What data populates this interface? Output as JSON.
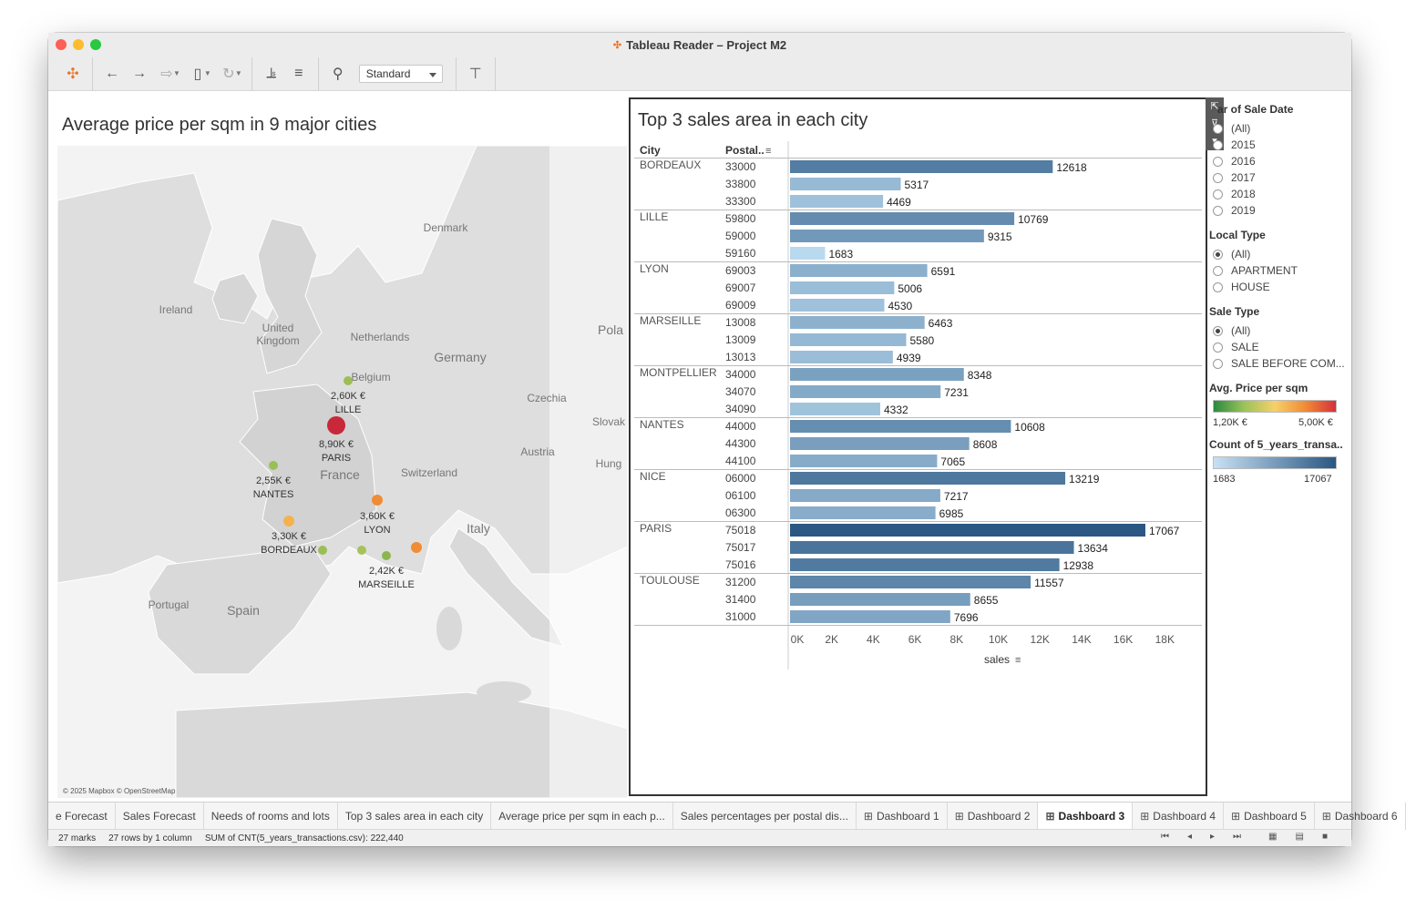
{
  "window": {
    "title": "Tableau Reader – Project M2"
  },
  "toolbar": {
    "view_select": "Standard"
  },
  "map_panel": {
    "title": "Average price per sqm in 9 major cities",
    "credit": "© 2025 Mapbox © OpenStreetMap",
    "geo_labels": [
      "Denmark",
      "Ireland",
      "United Kingdom",
      "Netherlands",
      "Germany",
      "Pola",
      "Belgium",
      "Czechia",
      "Slovak",
      "Austria",
      "Hung",
      "France",
      "Switzerland",
      "Italy",
      "Portugal",
      "Spain"
    ],
    "cities": [
      {
        "name": "LILLE",
        "price": "2,60K €"
      },
      {
        "name": "PARIS",
        "price": "8,90K €"
      },
      {
        "name": "NANTES",
        "price": "2,55K €"
      },
      {
        "name": "LYON",
        "price": "3,60K €"
      },
      {
        "name": "BORDEAUX",
        "price": "3,30K €"
      },
      {
        "name": "MARSEILLE",
        "price": "2,42K €"
      }
    ]
  },
  "chart_data": {
    "type": "bar",
    "title": "Top 3 sales area in each city",
    "col_city": "City",
    "col_postal": "Postal..",
    "xlabel": "sales",
    "xlim": [
      0,
      18000
    ],
    "xticks": [
      "0K",
      "2K",
      "4K",
      "6K",
      "8K",
      "10K",
      "12K",
      "14K",
      "16K",
      "18K"
    ],
    "groups": [
      {
        "city": "BORDEAUX",
        "rows": [
          {
            "postal": "33000",
            "value": 12618,
            "label": "12618"
          },
          {
            "postal": "33800",
            "value": 5317,
            "label": "5317"
          },
          {
            "postal": "33300",
            "value": 4469,
            "label": "4469"
          }
        ]
      },
      {
        "city": "LILLE",
        "rows": [
          {
            "postal": "59800",
            "value": 10769,
            "label": "10769"
          },
          {
            "postal": "59000",
            "value": 9315,
            "label": "9315"
          },
          {
            "postal": "59160",
            "value": 1683,
            "label": "1683"
          }
        ]
      },
      {
        "city": "LYON",
        "rows": [
          {
            "postal": "69003",
            "value": 6591,
            "label": "6591"
          },
          {
            "postal": "69007",
            "value": 5006,
            "label": "5006"
          },
          {
            "postal": "69009",
            "value": 4530,
            "label": "4530"
          }
        ]
      },
      {
        "city": "MARSEILLE",
        "rows": [
          {
            "postal": "13008",
            "value": 6463,
            "label": "6463"
          },
          {
            "postal": "13009",
            "value": 5580,
            "label": "5580"
          },
          {
            "postal": "13013",
            "value": 4939,
            "label": "4939"
          }
        ]
      },
      {
        "city": "MONTPELLIER",
        "rows": [
          {
            "postal": "34000",
            "value": 8348,
            "label": "8348"
          },
          {
            "postal": "34070",
            "value": 7231,
            "label": "7231"
          },
          {
            "postal": "34090",
            "value": 4332,
            "label": "4332"
          }
        ]
      },
      {
        "city": "NANTES",
        "rows": [
          {
            "postal": "44000",
            "value": 10608,
            "label": "10608"
          },
          {
            "postal": "44300",
            "value": 8608,
            "label": "8608"
          },
          {
            "postal": "44100",
            "value": 7065,
            "label": "7065"
          }
        ]
      },
      {
        "city": "NICE",
        "rows": [
          {
            "postal": "06000",
            "value": 13219,
            "label": "13219"
          },
          {
            "postal": "06100",
            "value": 7217,
            "label": "7217"
          },
          {
            "postal": "06300",
            "value": 6985,
            "label": "6985"
          }
        ]
      },
      {
        "city": "PARIS",
        "rows": [
          {
            "postal": "75018",
            "value": 17067,
            "label": "17067"
          },
          {
            "postal": "75017",
            "value": 13634,
            "label": "13634"
          },
          {
            "postal": "75016",
            "value": 12938,
            "label": "12938"
          }
        ]
      },
      {
        "city": "TOULOUSE",
        "rows": [
          {
            "postal": "31200",
            "value": 11557,
            "label": "11557"
          },
          {
            "postal": "31400",
            "value": 8655,
            "label": "8655"
          },
          {
            "postal": "31000",
            "value": 7696,
            "label": "7696"
          }
        ]
      }
    ],
    "color_min": "#b9d9ef",
    "color_max": "#2a5783"
  },
  "filters": {
    "year": {
      "title": "ar of Sale Date",
      "options": [
        "(All)",
        "2015",
        "2016",
        "2017",
        "2018",
        "2019"
      ]
    },
    "local_type": {
      "title": "Local Type",
      "options": [
        "(All)",
        "APARTMENT",
        "HOUSE"
      ]
    },
    "sale_type": {
      "title": "Sale Type",
      "options": [
        "(All)",
        "SALE",
        "SALE BEFORE COM..."
      ]
    },
    "price_legend": {
      "title": "Avg. Price per sqm",
      "min": "1,20K €",
      "max": "5,00K €"
    },
    "count_legend": {
      "title": "Count of 5_years_transa..",
      "min": "1683",
      "max": "17067"
    }
  },
  "tabs": [
    "e Forecast",
    "Sales Forecast",
    "Needs of rooms and lots",
    "Top 3 sales area in each city",
    "Average price per sqm in each p...",
    "Sales percentages per postal dis...",
    "Dashboard 1",
    "Dashboard 2",
    "Dashboard 3",
    "Dashboard 4",
    "Dashboard 5",
    "Dashboard 6"
  ],
  "active_tab": "Dashboard 3",
  "status": {
    "marks": "27 marks",
    "rows": "27 rows  by  1 column",
    "sum": "SUM of CNT(5_years_transactions.csv): 222,440"
  }
}
